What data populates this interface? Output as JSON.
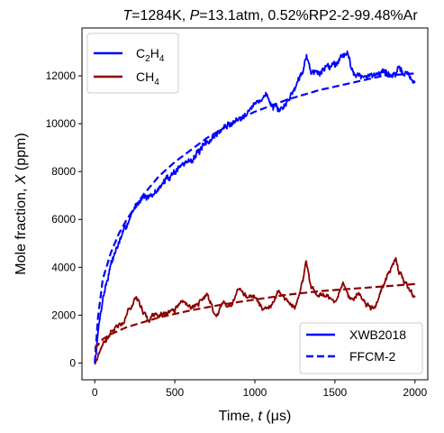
{
  "chart_data": {
    "type": "line",
    "title": {
      "t_symbol": "T",
      "t_value": "=1284K, ",
      "p_symbol": "P",
      "p_value": "=13.1atm, 0.52%RP2-2-99.48%Ar"
    },
    "xlabel": {
      "text": "Time, ",
      "symbol": "t",
      "unit": " (μs)"
    },
    "ylabel": {
      "text": "Mole fraction, ",
      "symbol": "X",
      "unit": " (ppm)"
    },
    "xlim": [
      -80,
      2080
    ],
    "ylim": [
      -700,
      14000
    ],
    "xticks": [
      0,
      500,
      1000,
      1500,
      2000
    ],
    "yticks": [
      0,
      2000,
      4000,
      6000,
      8000,
      10000,
      12000
    ],
    "grid": false,
    "species_legend": {
      "placement": "upper-left",
      "entries": [
        {
          "base": "C",
          "sub1": "2",
          "mid": "H",
          "sub2": "4",
          "color": "#0000ff"
        },
        {
          "base": "CH",
          "sub1": "4",
          "mid": "",
          "sub2": "",
          "color": "#8b0000"
        }
      ]
    },
    "style_legend": {
      "placement": "lower-right",
      "entries": [
        {
          "label": "XWB2018",
          "style": "solid"
        },
        {
          "label": "FFCM-2",
          "style": "dashed"
        }
      ]
    },
    "series": [
      {
        "species": "C2H4",
        "source": "XWB2018",
        "style": "solid",
        "color": "#0000ff",
        "noise": 180,
        "seed": 7,
        "x": [
          0,
          15,
          30,
          50,
          75,
          100,
          125,
          150,
          175,
          200,
          250,
          300,
          350,
          400,
          450,
          500,
          550,
          600,
          650,
          700,
          750,
          800,
          850,
          900,
          950,
          1000,
          1050,
          1080,
          1100,
          1150,
          1200,
          1250,
          1300,
          1320,
          1350,
          1400,
          1450,
          1500,
          1550,
          1580,
          1600,
          1650,
          1700,
          1750,
          1800,
          1850,
          1900,
          1950,
          2000
        ],
        "y": [
          0,
          900,
          1800,
          2700,
          3400,
          4100,
          4600,
          5000,
          5400,
          5800,
          6500,
          7000,
          6900,
          7300,
          7700,
          8000,
          8300,
          8500,
          8800,
          9200,
          9500,
          9800,
          10000,
          10200,
          10500,
          10800,
          11100,
          11200,
          10800,
          10500,
          10900,
          11500,
          12300,
          12900,
          12200,
          12100,
          12400,
          12500,
          12900,
          13000,
          12300,
          12000,
          11900,
          12100,
          12200,
          12000,
          12200,
          12100,
          11700
        ]
      },
      {
        "species": "CH4",
        "source": "XWB2018",
        "style": "solid",
        "color": "#8b0000",
        "noise": 120,
        "seed": 21,
        "x": [
          0,
          20,
          50,
          80,
          100,
          130,
          150,
          180,
          200,
          240,
          260,
          300,
          340,
          360,
          400,
          450,
          500,
          550,
          600,
          650,
          700,
          760,
          800,
          850,
          900,
          950,
          1000,
          1050,
          1100,
          1150,
          1200,
          1250,
          1300,
          1320,
          1350,
          1400,
          1450,
          1500,
          1550,
          1600,
          1650,
          1700,
          1750,
          1800,
          1850,
          1880,
          1900,
          1950,
          2000
        ],
        "y": [
          0,
          300,
          800,
          1000,
          1300,
          1500,
          1600,
          1700,
          2100,
          2500,
          2800,
          2200,
          1700,
          2000,
          2000,
          2100,
          2200,
          2600,
          2300,
          2500,
          2900,
          1900,
          2600,
          2300,
          3200,
          2700,
          2800,
          2200,
          2400,
          3000,
          2600,
          2300,
          3400,
          4300,
          3200,
          2800,
          2900,
          2500,
          3300,
          2600,
          2900,
          2400,
          2300,
          3200,
          4000,
          4400,
          3800,
          3200,
          2700
        ]
      },
      {
        "species": "C2H4",
        "source": "FFCM-2",
        "style": "dashed",
        "color": "#0000ff",
        "noise": 0,
        "seed": 0,
        "x": [
          0,
          20,
          50,
          100,
          150,
          200,
          300,
          400,
          500,
          600,
          700,
          800,
          900,
          1000,
          1200,
          1400,
          1600,
          1800,
          2000
        ],
        "y": [
          0,
          1900,
          3500,
          4600,
          5400,
          6000,
          7000,
          7800,
          8400,
          8900,
          9400,
          9800,
          10200,
          10500,
          11000,
          11400,
          11700,
          12000,
          12100
        ]
      },
      {
        "species": "CH4",
        "source": "FFCM-2",
        "style": "dashed",
        "color": "#8b0000",
        "noise": 0,
        "seed": 0,
        "x": [
          0,
          50,
          100,
          200,
          300,
          400,
          500,
          600,
          800,
          1000,
          1200,
          1400,
          1600,
          1800,
          2000
        ],
        "y": [
          600,
          1000,
          1200,
          1500,
          1700,
          1900,
          2050,
          2200,
          2450,
          2650,
          2850,
          3000,
          3100,
          3200,
          3300
        ]
      }
    ]
  }
}
